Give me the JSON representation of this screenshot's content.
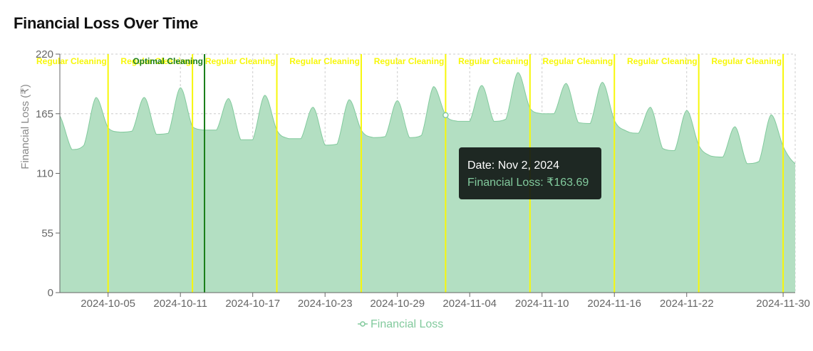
{
  "title": "Financial Loss Over Time",
  "colors": {
    "area_fill": "#b3dfc2",
    "area_stroke": "#82ca9d",
    "regular_line": "#f7f70a",
    "optimal_line": "#1a7f1a",
    "grid": "#cccccc",
    "axis": "#666666"
  },
  "tooltip": {
    "date_text": "Date: Nov 2, 2024",
    "label": "Financial Loss",
    "value": "₹163.69",
    "line": "Financial Loss: ₹163.69"
  },
  "chart_data": {
    "type": "area",
    "title": "Financial Loss Over Time",
    "xlabel": "",
    "ylabel": "Financial Loss (₹)",
    "ylim": [
      0,
      220
    ],
    "yticks": [
      0,
      55,
      110,
      165,
      220
    ],
    "xlim": [
      "2024-10-01",
      "2024-12-01"
    ],
    "xticks": [
      "2024-10-05",
      "2024-10-11",
      "2024-10-17",
      "2024-10-23",
      "2024-10-29",
      "2024-11-04",
      "2024-11-10",
      "2024-11-16",
      "2024-11-22",
      "2024-11-30"
    ],
    "grid": true,
    "legend": {
      "position": "bottom",
      "entries": [
        "Financial Loss"
      ]
    },
    "series": [
      {
        "name": "Financial Loss",
        "x": [
          "2024-10-01",
          "2024-10-02",
          "2024-10-03",
          "2024-10-04",
          "2024-10-05",
          "2024-10-06",
          "2024-10-07",
          "2024-10-08",
          "2024-10-09",
          "2024-10-10",
          "2024-10-11",
          "2024-10-12",
          "2024-10-13",
          "2024-10-14",
          "2024-10-15",
          "2024-10-16",
          "2024-10-17",
          "2024-10-18",
          "2024-10-19",
          "2024-10-20",
          "2024-10-21",
          "2024-10-22",
          "2024-10-23",
          "2024-10-24",
          "2024-10-25",
          "2024-10-26",
          "2024-10-27",
          "2024-10-28",
          "2024-10-29",
          "2024-10-30",
          "2024-10-31",
          "2024-11-01",
          "2024-11-02",
          "2024-11-03",
          "2024-11-04",
          "2024-11-05",
          "2024-11-06",
          "2024-11-07",
          "2024-11-08",
          "2024-11-09",
          "2024-11-10",
          "2024-11-11",
          "2024-11-12",
          "2024-11-13",
          "2024-11-14",
          "2024-11-15",
          "2024-11-16",
          "2024-11-17",
          "2024-11-18",
          "2024-11-19",
          "2024-11-20",
          "2024-11-21",
          "2024-11-22",
          "2024-11-23",
          "2024-11-24",
          "2024-11-25",
          "2024-11-26",
          "2024-11-27",
          "2024-11-28",
          "2024-11-29",
          "2024-11-30",
          "2024-12-01"
        ],
        "values": [
          163,
          132,
          136,
          180,
          152,
          148,
          149,
          180,
          146,
          147,
          189,
          153,
          150,
          150,
          179,
          141,
          141,
          182,
          150,
          142,
          142,
          171,
          136,
          137,
          178,
          150,
          143,
          144,
          177,
          143,
          145,
          190,
          163.69,
          158,
          158,
          191,
          158,
          160,
          203,
          170,
          165,
          165,
          193,
          157,
          156,
          194,
          159,
          149,
          147,
          171,
          133,
          131,
          168,
          136,
          126,
          125,
          153,
          119,
          121,
          164,
          135,
          119
        ]
      }
    ],
    "cleaning_events": [
      {
        "date": "2024-10-05",
        "label": "Regular Cleaning",
        "type": "regular"
      },
      {
        "date": "2024-10-12",
        "label": "Regular Cleaning",
        "type": "regular"
      },
      {
        "date": "2024-10-13",
        "label": "Optimal Cleaning",
        "type": "optimal"
      },
      {
        "date": "2024-10-19",
        "label": "Regular Cleaning",
        "type": "regular"
      },
      {
        "date": "2024-10-26",
        "label": "Regular Cleaning",
        "type": "regular"
      },
      {
        "date": "2024-11-02",
        "label": "Regular Cleaning",
        "type": "regular"
      },
      {
        "date": "2024-11-09",
        "label": "Regular Cleaning",
        "type": "regular"
      },
      {
        "date": "2024-11-16",
        "label": "Regular Cleaning",
        "type": "regular"
      },
      {
        "date": "2024-11-23",
        "label": "Regular Cleaning",
        "type": "regular"
      },
      {
        "date": "2024-11-30",
        "label": "Regular Cleaning",
        "type": "regular"
      }
    ],
    "active_point": {
      "date": "2024-11-02",
      "value": 163.69
    }
  }
}
